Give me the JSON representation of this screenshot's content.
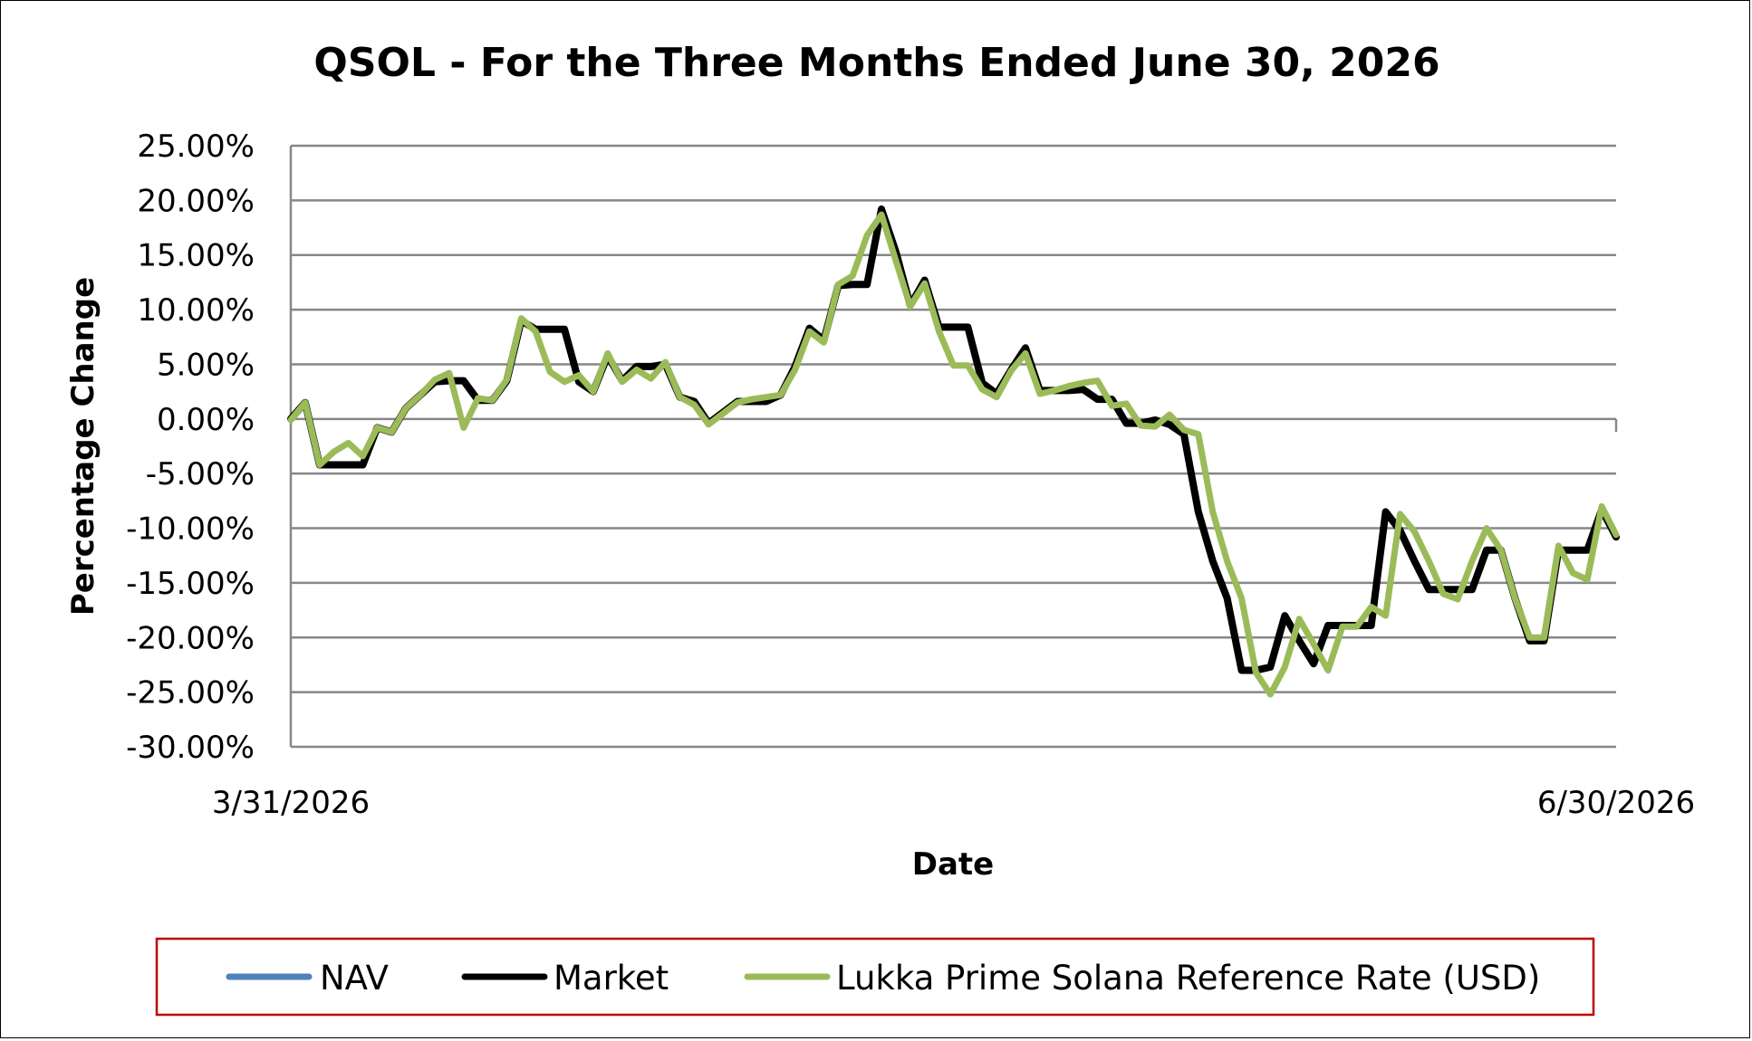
{
  "chart_data": {
    "type": "line",
    "title": "QSOL - For the Three Months Ended June 30, 2026",
    "xlabel": "Date",
    "ylabel": "Percentage Change",
    "x_tick_labels": [
      "3/31/2026",
      "6/30/2026"
    ],
    "y_tick_labels": [
      "25.00%",
      "20.00%",
      "15.00%",
      "10.00%",
      "5.00%",
      "0.00%",
      "-5.00%",
      "-10.00%",
      "-15.00%",
      "-20.00%",
      "-25.00%",
      "-30.00%"
    ],
    "ylim": [
      -30,
      25
    ],
    "y_ticks": [
      25,
      20,
      15,
      10,
      5,
      0,
      -5,
      -10,
      -15,
      -20,
      -25,
      -30
    ],
    "grid": true,
    "legend_position": "bottom",
    "colors": {
      "NAV": "#4f81bd",
      "Market": "#000000",
      "Lukka Prime Solana Reference Rate (USD)": "#9bbb59",
      "legend_border": "#c00000",
      "gridline": "#878787"
    },
    "series": [
      {
        "name": "NAV",
        "values": [
          0,
          1.5,
          -4.2,
          -4.2,
          -4.2,
          -4.2,
          -0.8,
          -1.2,
          1.0,
          2.2,
          3.4,
          3.5,
          3.5,
          1.7,
          1.7,
          3.5,
          9.0,
          8.2,
          8.2,
          8.2,
          3.4,
          2.5,
          5.8,
          3.5,
          4.8,
          4.8,
          5.0,
          2.0,
          1.6,
          -0.4,
          0.6,
          1.6,
          1.6,
          1.6,
          2.2,
          4.8,
          8.3,
          7.2,
          12.2,
          12.3,
          12.3,
          19.2,
          15.3,
          10.4,
          12.7,
          8.4,
          8.4,
          8.4,
          3.3,
          2.3,
          4.5,
          6.5,
          2.6,
          2.6,
          2.6,
          2.7,
          1.8,
          1.8,
          -0.4,
          -0.4,
          -0.1,
          -0.5,
          -1.4,
          -8.5,
          -13.0,
          -16.4,
          -23.0,
          -23.0,
          -22.7,
          -18.0,
          -20.3,
          -22.4,
          -18.9,
          -18.9,
          -18.9,
          -18.9,
          -8.5,
          -10.2,
          -13.0,
          -15.6,
          -15.6,
          -15.6,
          -15.6,
          -12.0,
          -12.0,
          -16.5,
          -20.3,
          -20.3,
          -12.0,
          -12.0,
          -12.0,
          -8.3,
          -10.8
        ]
      },
      {
        "name": "Market",
        "values": [
          0,
          1.5,
          -4.2,
          -4.2,
          -4.2,
          -4.2,
          -0.8,
          -1.2,
          1.0,
          2.2,
          3.4,
          3.5,
          3.5,
          1.7,
          1.7,
          3.5,
          9.0,
          8.2,
          8.2,
          8.2,
          3.4,
          2.5,
          5.8,
          3.5,
          4.8,
          4.8,
          5.0,
          2.0,
          1.6,
          -0.4,
          0.6,
          1.6,
          1.6,
          1.6,
          2.2,
          4.8,
          8.3,
          7.2,
          12.2,
          12.3,
          12.3,
          19.2,
          15.3,
          10.4,
          12.7,
          8.4,
          8.4,
          8.4,
          3.3,
          2.3,
          4.5,
          6.5,
          2.6,
          2.6,
          2.6,
          2.7,
          1.8,
          1.8,
          -0.4,
          -0.4,
          -0.1,
          -0.5,
          -1.4,
          -8.5,
          -13.0,
          -16.4,
          -23.0,
          -23.0,
          -22.7,
          -18.0,
          -20.3,
          -22.4,
          -18.9,
          -18.9,
          -18.9,
          -18.9,
          -8.5,
          -10.2,
          -13.0,
          -15.6,
          -15.6,
          -15.6,
          -15.6,
          -12.0,
          -12.0,
          -16.5,
          -20.3,
          -20.3,
          -12.0,
          -12.0,
          -12.0,
          -8.3,
          -10.8
        ]
      },
      {
        "name": "Lukka Prime Solana Reference Rate (USD)",
        "values": [
          -0.1,
          1.5,
          -4.2,
          -3.0,
          -2.2,
          -3.4,
          -0.8,
          -1.2,
          1.0,
          2.2,
          3.6,
          4.2,
          -0.8,
          1.9,
          1.7,
          3.6,
          9.2,
          8.0,
          4.3,
          3.4,
          4.0,
          2.5,
          6.0,
          3.4,
          4.5,
          3.7,
          5.2,
          2.0,
          1.3,
          -0.5,
          0.5,
          1.5,
          1.8,
          2.0,
          2.2,
          4.5,
          8.0,
          7.0,
          12.3,
          13.1,
          16.8,
          18.7,
          14.5,
          10.3,
          12.4,
          8.0,
          4.9,
          4.9,
          2.7,
          2.0,
          4.4,
          6.0,
          2.3,
          2.6,
          3.0,
          3.3,
          3.5,
          1.2,
          1.4,
          -0.6,
          -0.7,
          0.4,
          -1.0,
          -1.4,
          -8.5,
          -13.0,
          -16.4,
          -23.2,
          -25.2,
          -22.7,
          -18.3,
          -20.6,
          -23.0,
          -19.0,
          -19.0,
          -17.2,
          -18.0,
          -8.7,
          -10.3,
          -13.0,
          -16.0,
          -16.5,
          -13.0,
          -10.0,
          -12.0,
          -16.5,
          -20.0,
          -20.0,
          -11.6,
          -14.1,
          -14.7,
          -8.0,
          -10.6
        ]
      }
    ]
  }
}
